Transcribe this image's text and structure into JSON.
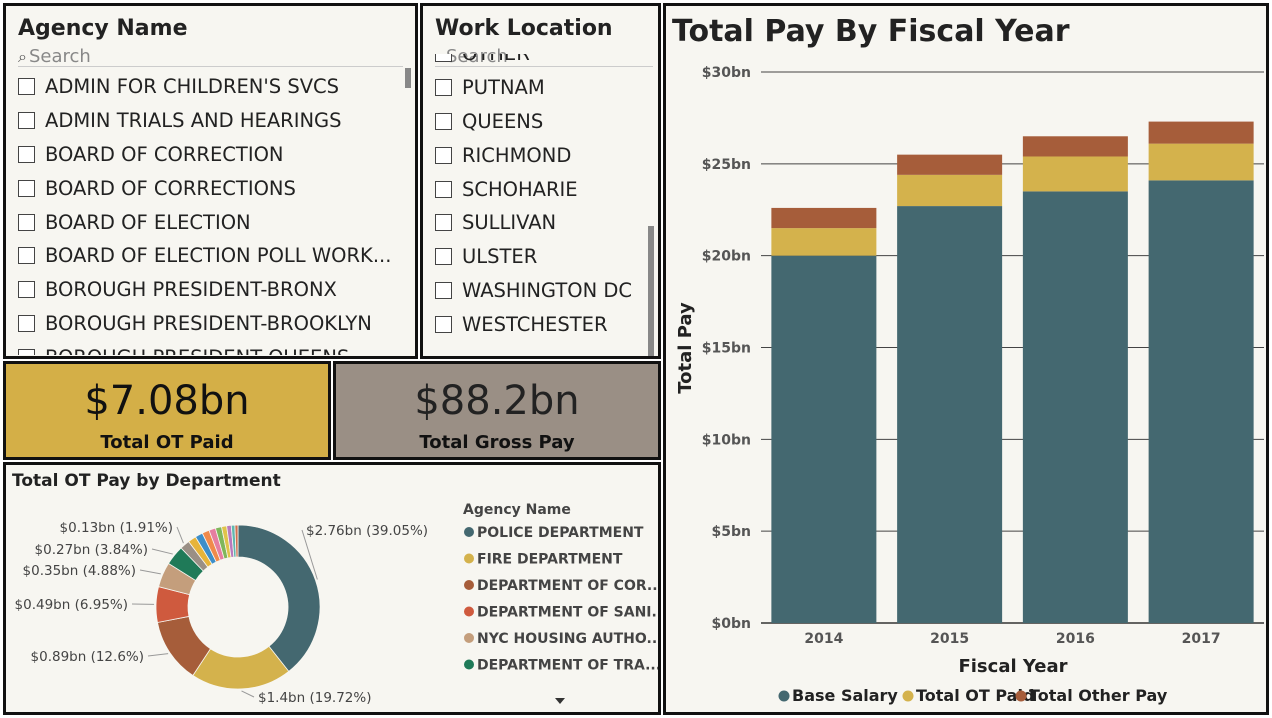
{
  "agency_slicer": {
    "title": "Agency Name",
    "search_placeholder": "Search",
    "items": [
      "ADMIN FOR CHILDREN'S SVCS",
      "ADMIN TRIALS AND HEARINGS",
      "BOARD OF CORRECTION",
      "BOARD OF CORRECTIONS",
      "BOARD OF ELECTION",
      "BOARD OF ELECTION POLL WORK...",
      "BOROUGH PRESIDENT-BRONX",
      "BOROUGH PRESIDENT-BROOKLYN",
      "BOROUGH PRESIDENT-QUEENS"
    ]
  },
  "location_slicer": {
    "title": "Work Location",
    "search_placeholder": "Search",
    "items": [
      "OTHER",
      "PUTNAM",
      "QUEENS",
      "RICHMOND",
      "SCHOHARIE",
      "SULLIVAN",
      "ULSTER",
      "WASHINGTON DC",
      "WESTCHESTER"
    ]
  },
  "kpis": {
    "ot_paid": {
      "value": "$7.08bn",
      "label": "Total OT Paid",
      "color": "#d4af47"
    },
    "gross_pay": {
      "value": "$88.2bn",
      "label": "Total Gross Pay",
      "color": "#9a8f85"
    }
  },
  "donut": {
    "title": "Total OT Pay by Department",
    "legend_title": "Agency Name",
    "legend": [
      {
        "name": "POLICE DEPARTMENT",
        "color": "#446870"
      },
      {
        "name": "FIRE DEPARTMENT",
        "color": "#d4b24c"
      },
      {
        "name": "DEPARTMENT OF COR...",
        "color": "#a65d3a"
      },
      {
        "name": "DEPARTMENT OF SANI...",
        "color": "#cf5a3e"
      },
      {
        "name": "NYC HOUSING AUTHO...",
        "color": "#c49e7c"
      },
      {
        "name": "DEPARTMENT OF TRA...",
        "color": "#1f7a58"
      }
    ],
    "slices": [
      {
        "value": 39.05,
        "label": "$2.76bn (39.05%)",
        "color": "#446870"
      },
      {
        "value": 19.72,
        "label": "$1.4bn (19.72%)",
        "color": "#d4b24c"
      },
      {
        "value": 12.6,
        "label": "$0.89bn (12.6%)",
        "color": "#a65d3a"
      },
      {
        "value": 6.95,
        "label": "$0.49bn (6.95%)",
        "color": "#cf5a3e"
      },
      {
        "value": 4.88,
        "label": "$0.35bn (4.88%)",
        "color": "#c49e7c"
      },
      {
        "value": 3.84,
        "label": "$0.27bn (3.84%)",
        "color": "#1f7a58"
      },
      {
        "value": 1.91,
        "label": "$0.13bn (1.91%)",
        "color": "#9a8f85"
      },
      {
        "value": 1.6,
        "color": "#e6b43a"
      },
      {
        "value": 1.5,
        "color": "#3c8ec9"
      },
      {
        "value": 1.4,
        "color": "#f08a4b"
      },
      {
        "value": 1.3,
        "color": "#e67ea0"
      },
      {
        "value": 1.2,
        "color": "#7fb65b"
      },
      {
        "value": 1.0,
        "color": "#e0c34a"
      },
      {
        "value": 0.9,
        "color": "#b97abd"
      },
      {
        "value": 0.7,
        "color": "#5fb8b0"
      },
      {
        "value": 0.6,
        "color": "#d07050"
      }
    ]
  },
  "chart_data": {
    "type": "bar",
    "title": "Total Pay By Fiscal Year",
    "xlabel": "Fiscal Year",
    "ylabel": "Total Pay",
    "categories": [
      "2014",
      "2015",
      "2016",
      "2017"
    ],
    "ylim": [
      0,
      30
    ],
    "yticks": [
      "$0bn",
      "$5bn",
      "$10bn",
      "$15bn",
      "$20bn",
      "$25bn",
      "$30bn"
    ],
    "stacked": true,
    "legend_position": "bottom",
    "series": [
      {
        "name": "Base Salary",
        "color": "#446870",
        "values": [
          20.0,
          22.7,
          23.5,
          24.1
        ]
      },
      {
        "name": "Total OT Paid",
        "color": "#d4b24c",
        "values": [
          1.5,
          1.7,
          1.9,
          2.0
        ]
      },
      {
        "name": "Total Other Pay",
        "color": "#a65d3a",
        "values": [
          1.1,
          1.1,
          1.1,
          1.2
        ]
      }
    ]
  }
}
